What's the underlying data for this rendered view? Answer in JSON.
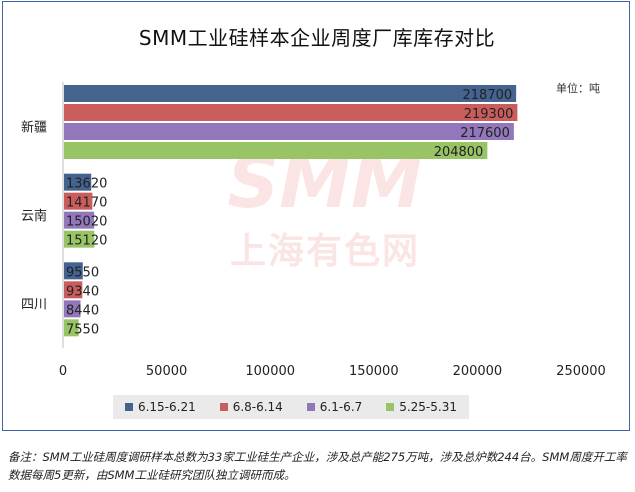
{
  "chart_data": {
    "type": "bar",
    "orientation": "horizontal",
    "title": "SMM工业硅样本企业周度厂库库存对比",
    "unit_label": "单位：吨",
    "categories": [
      "新疆",
      "云南",
      "四川"
    ],
    "series": [
      {
        "name": "6.15-6.21",
        "color": "#44638e",
        "values": [
          218700,
          13620,
          9550
        ]
      },
      {
        "name": "6.8-6.14",
        "color": "#cb5c5c",
        "values": [
          219300,
          14170,
          9340
        ]
      },
      {
        "name": "6.1-6.7",
        "color": "#9277ba",
        "values": [
          217600,
          15020,
          8440
        ]
      },
      {
        "name": "5.25-5.31",
        "color": "#99c465",
        "values": [
          204800,
          15120,
          7550
        ]
      }
    ],
    "xlim": [
      0,
      250000
    ],
    "xticks": [
      "0",
      "50000",
      "100000",
      "150000",
      "200000",
      "250000"
    ],
    "grid": false,
    "legend_position": "bottom"
  },
  "watermark": {
    "logo": "SMM",
    "text": "上海有色网"
  },
  "note": "备注：SMM工业硅周度调研样本总数为33家工业硅生产企业，涉及总产能275万吨，涉及总炉数244台。SMM周度开工率数据每周5更新，由SMM工业硅研究团队独立调研而成。"
}
